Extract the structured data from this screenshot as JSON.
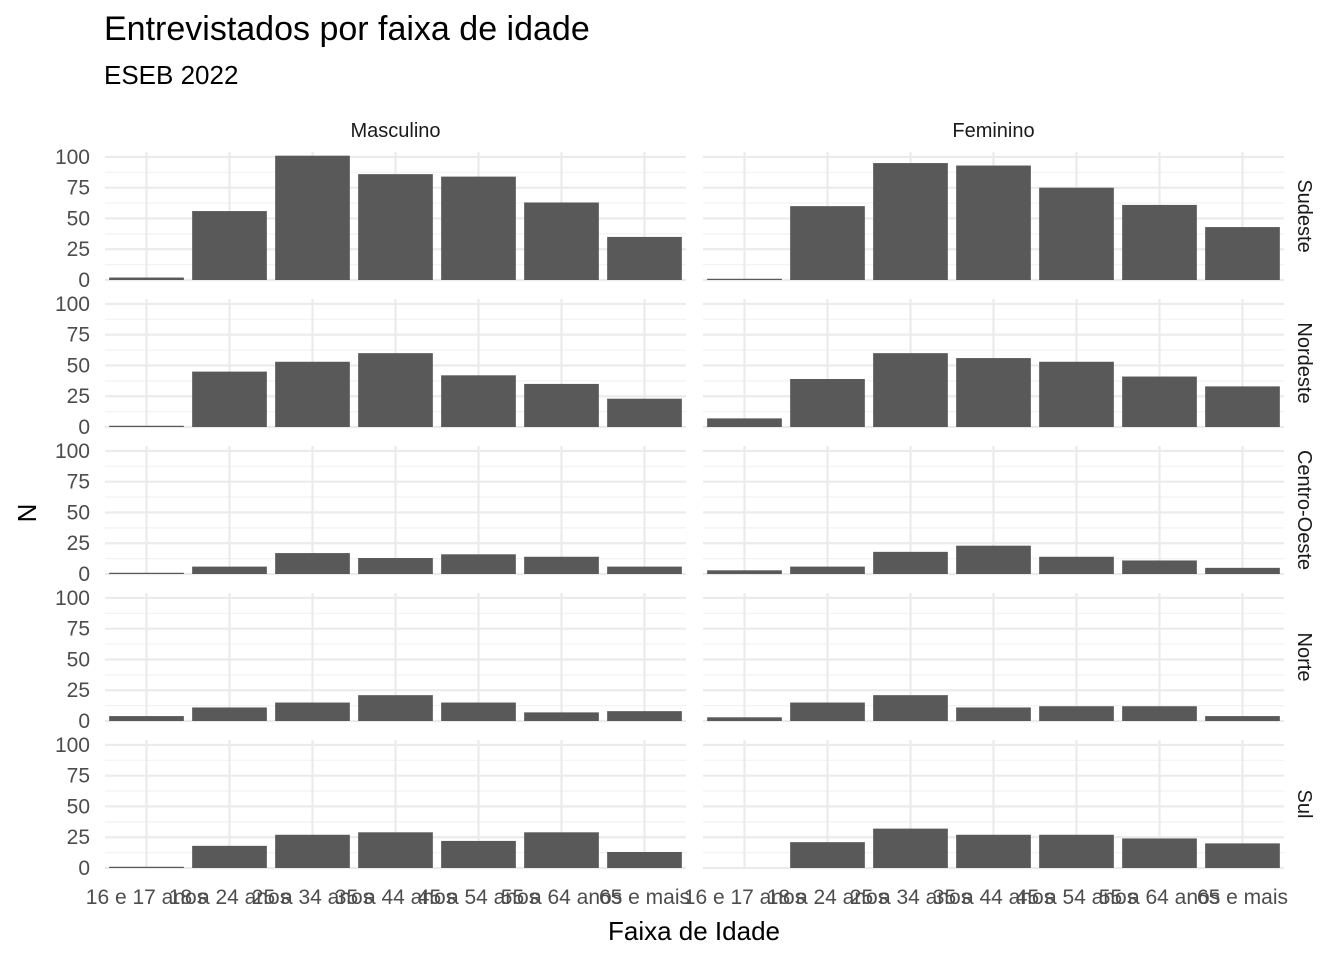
{
  "chart_data": {
    "type": "bar",
    "title": "Entrevistados por faixa de idade",
    "subtitle": "ESEB 2022",
    "xlabel": "Faixa de Idade",
    "ylabel": "N",
    "ylim": [
      0,
      104
    ],
    "yticks": [
      0,
      25,
      50,
      75,
      100
    ],
    "categories": [
      "16 e 17 anos",
      "18 a 24 anos",
      "25 a 34 anos",
      "35 a 44 anos",
      "45 a 54 anos",
      "55 a 64 anos",
      "65 e mais"
    ],
    "columns": [
      "Masculino",
      "Feminino"
    ],
    "rows": [
      "Sudeste",
      "Nordeste",
      "Centro-Oeste",
      "Norte",
      "Sul"
    ],
    "panels": [
      {
        "row": "Sudeste",
        "column": "Masculino",
        "values": [
          2,
          56,
          101,
          86,
          84,
          63,
          35
        ]
      },
      {
        "row": "Sudeste",
        "column": "Feminino",
        "values": [
          1,
          60,
          95,
          93,
          75,
          61,
          43
        ]
      },
      {
        "row": "Nordeste",
        "column": "Masculino",
        "values": [
          1,
          45,
          53,
          60,
          42,
          35,
          23
        ]
      },
      {
        "row": "Nordeste",
        "column": "Feminino",
        "values": [
          7,
          39,
          60,
          56,
          53,
          41,
          33
        ]
      },
      {
        "row": "Centro-Oeste",
        "column": "Masculino",
        "values": [
          1,
          6,
          17,
          13,
          16,
          14,
          6
        ]
      },
      {
        "row": "Centro-Oeste",
        "column": "Feminino",
        "values": [
          3,
          6,
          18,
          23,
          14,
          11,
          5
        ]
      },
      {
        "row": "Norte",
        "column": "Masculino",
        "values": [
          4,
          11,
          15,
          21,
          15,
          7,
          8
        ]
      },
      {
        "row": "Norte",
        "column": "Feminino",
        "values": [
          3,
          15,
          21,
          11,
          12,
          12,
          4
        ]
      },
      {
        "row": "Sul",
        "column": "Masculino",
        "values": [
          1,
          18,
          27,
          29,
          22,
          29,
          13
        ]
      },
      {
        "row": "Sul",
        "column": "Feminino",
        "values": [
          0,
          21,
          32,
          27,
          27,
          24,
          20
        ]
      }
    ],
    "bar_color": "#595959",
    "grid": true,
    "legend": "none"
  }
}
